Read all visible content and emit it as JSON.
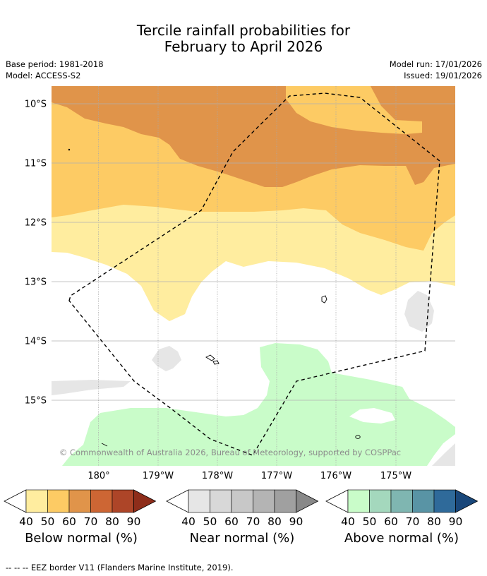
{
  "header": {
    "title_line1": "Tercile rainfall probabilities for",
    "title_line2": "February to April 2026",
    "base_period": "Base period: 1981-2018",
    "model": "Model: ACCESS-S2",
    "model_run": "Model run: 17/01/2026",
    "issued": "Issued: 19/01/2026"
  },
  "map": {
    "lat_labels": [
      "10°S",
      "11°S",
      "12°S",
      "13°S",
      "14°S",
      "15°S"
    ],
    "lon_labels": [
      "180°",
      "179°W",
      "178°W",
      "177°W",
      "176°W",
      "175°W"
    ],
    "copyright": "© Commonwealth of Australia 2026, Bureau of Meteorology, supported by COSPPac"
  },
  "colorbars": [
    {
      "label": "Below normal (%)",
      "ticks": [
        "40",
        "50",
        "60",
        "70",
        "80",
        "90"
      ],
      "colors": [
        "#ffed9f",
        "#fdcb64",
        "#e0944a",
        "#cd6634",
        "#ad4528",
        "#8e2d1a"
      ]
    },
    {
      "label": "Near normal (%)",
      "ticks": [
        "40",
        "50",
        "60",
        "70",
        "80",
        "90"
      ],
      "colors": [
        "#e6e6e6",
        "#d8d8d8",
        "#c8c8c8",
        "#b4b4b4",
        "#a0a0a0",
        "#888888"
      ]
    },
    {
      "label": "Above normal (%)",
      "ticks": [
        "40",
        "50",
        "60",
        "70",
        "80",
        "90"
      ],
      "colors": [
        "#c9fcc9",
        "#a4d8bd",
        "#7fb6b1",
        "#5994a5",
        "#2f6a9a",
        "#19477a"
      ]
    }
  ],
  "footnote": "--  --  -- EEZ border V11 (Flanders Marine Institute, 2019)."
}
